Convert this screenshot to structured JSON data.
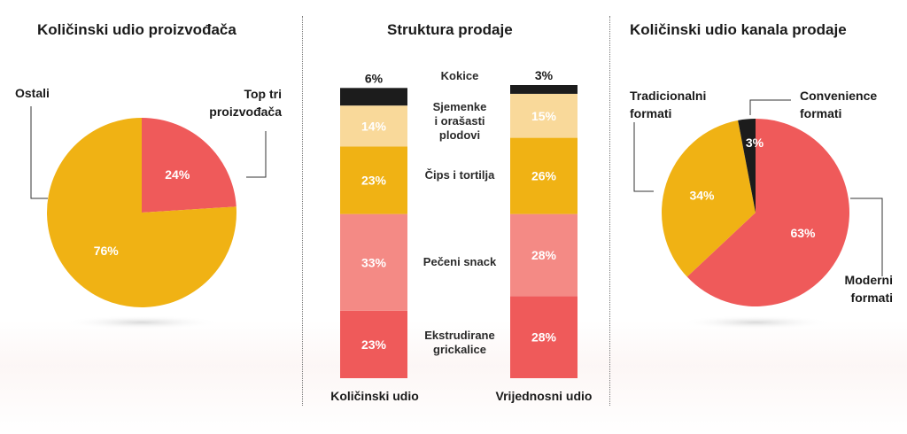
{
  "colors": {
    "red": "#EF5A5A",
    "yellow": "#F0B214",
    "pink": "#F48A85",
    "light_yellow": "#F9D99A",
    "black": "#1C1C1C"
  },
  "chart_data": [
    {
      "type": "pie",
      "title": "Količinski udio proizvođača",
      "slices": [
        {
          "label": "Top tri proizvođača",
          "value": 24,
          "value_label": "24%",
          "color": "#EF5A5A"
        },
        {
          "label": "Ostali",
          "value": 76,
          "value_label": "76%",
          "color": "#F0B214"
        }
      ],
      "external_labels": {
        "ostali": "Ostali",
        "top_line1": "Top tri",
        "top_line2": "proizvođača"
      }
    },
    {
      "type": "bar",
      "stacked": true,
      "title": "Struktura prodaje",
      "categories": [
        "Količinski udio",
        "Vrijednosni udio"
      ],
      "series": [
        {
          "name": "Ekstrudirane grickalice",
          "label_lines": [
            "Ekstrudirane",
            "grickalice"
          ],
          "values": [
            23,
            28
          ],
          "color": "#EF5A5A"
        },
        {
          "name": "Pečeni snack",
          "label_lines": [
            "Pečeni snack"
          ],
          "values": [
            33,
            28
          ],
          "color": "#F48A85"
        },
        {
          "name": "Čips i tortilja",
          "label_lines": [
            "Čips i tortilja"
          ],
          "values": [
            23,
            26
          ],
          "color": "#F0B214"
        },
        {
          "name": "Sjemenke i orašasti plodovi",
          "label_lines": [
            "Sjemenke",
            "i orašasti",
            "plodovi"
          ],
          "values": [
            14,
            15
          ],
          "color": "#F9D99A"
        },
        {
          "name": "Kokice",
          "label_lines": [
            "Kokice"
          ],
          "values": [
            6,
            3
          ],
          "color": "#1C1C1C"
        }
      ],
      "ylim": [
        0,
        100
      ]
    },
    {
      "type": "pie",
      "title": "Količinski udio kanala prodaje",
      "slices": [
        {
          "label": "Moderni formati",
          "value": 63,
          "value_label": "63%",
          "color": "#EF5A5A"
        },
        {
          "label": "Tradicionalni formati",
          "value": 34,
          "value_label": "34%",
          "color": "#F0B214"
        },
        {
          "label": "Convenience formati",
          "value": 3,
          "value_label": "3%",
          "color": "#1C1C1C"
        }
      ],
      "external_labels": {
        "trad_line1": "Tradicionalni",
        "trad_line2": "formati",
        "conv_line1": "Convenience",
        "conv_line2": "formati",
        "mod_line1": "Moderni",
        "mod_line2": "formati"
      }
    }
  ]
}
